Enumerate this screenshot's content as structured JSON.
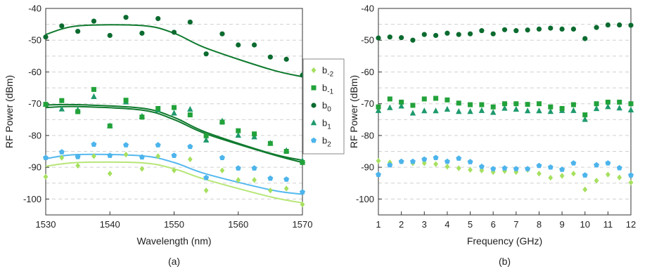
{
  "colors": {
    "b_-2": "#a6e05f",
    "b_-1": "#22a23a",
    "b_0": "#0b6b2f",
    "b_1": "#1e9a6c",
    "b_2": "#4db4ec",
    "fit_b_0": "#0f7a2e",
    "fit_b_1": "#0f7a2e",
    "fit_b_-1": "#0f7a2e",
    "fit_b_2": "#55b9ee",
    "fit_b_-2": "#b7e677",
    "grid": "#d0d0d0",
    "axis": "#333333"
  },
  "legend": {
    "entries": [
      {
        "key": "b_-2",
        "base": "b",
        "sub": "-2",
        "marker": "diamond"
      },
      {
        "key": "b_-1",
        "base": "b",
        "sub": "-1",
        "marker": "square"
      },
      {
        "key": "b_0",
        "base": "b",
        "sub": "0",
        "marker": "circle"
      },
      {
        "key": "b_1",
        "base": "b",
        "sub": "1",
        "marker": "triangle"
      },
      {
        "key": "b_2",
        "base": "b",
        "sub": "2",
        "marker": "pentagon"
      }
    ]
  },
  "chart_data": [
    {
      "panel_label": "(a)",
      "type": "scatter",
      "xlabel": "Wavelength (nm)",
      "ylabel": "RF Power (dBm)",
      "xlim": [
        1530,
        1570
      ],
      "ylim": [
        -105,
        -40
      ],
      "xticks": [
        "1530",
        "1540",
        "1550",
        "1560",
        "1570"
      ],
      "yticks": [
        "-40",
        "-50",
        "-60",
        "-70",
        "-80",
        "-90",
        "-100"
      ],
      "grid": "horizontal dashed",
      "legend_position": "right",
      "series": [
        {
          "key": "b_0",
          "marker": "circle",
          "x": [
            1530,
            1532.5,
            1535,
            1537.5,
            1540,
            1542.5,
            1545,
            1547.5,
            1550,
            1552.5,
            1555,
            1557.5,
            1560,
            1562.5,
            1565,
            1567.5,
            1570
          ],
          "y": [
            -49,
            -45.5,
            -47.2,
            -44,
            -48.5,
            -42.8,
            -47.8,
            -43.2,
            -47.5,
            -44.3,
            -54.3,
            -48,
            -51.5,
            -51.5,
            -55.3,
            -56,
            -61
          ],
          "fit": [
            -48.2,
            -45.5,
            -45.4,
            -47.8,
            -52.5,
            -59.2,
            -61.5
          ]
        },
        {
          "key": "b_-1",
          "marker": "square",
          "x": [
            1530,
            1532.5,
            1535,
            1537.5,
            1540,
            1542.5,
            1545,
            1547.5,
            1550,
            1552.5,
            1555,
            1557.5,
            1560,
            1562.5,
            1565,
            1567.5,
            1570
          ],
          "y": [
            -70.2,
            -69,
            -72.5,
            -65.5,
            -77,
            -68.9,
            -74.2,
            -71.5,
            -71.2,
            -73.5,
            -80.1,
            -75.8,
            -78.5,
            -79.5,
            -82.5,
            -85,
            -88.5
          ],
          "fit": [
            -70.4,
            -70.3,
            -71.4,
            -74.3,
            -79,
            -85.6,
            -87.8
          ]
        },
        {
          "key": "b_1",
          "marker": "triangle",
          "x": [
            1530,
            1532.5,
            1535,
            1537.5,
            1540,
            1542.5,
            1545,
            1547.5,
            1550,
            1552.5,
            1555,
            1557.5,
            1560,
            1562.5,
            1565,
            1567.5,
            1570
          ],
          "y": [
            -70.2,
            -71.7,
            -72,
            -67.8,
            -77,
            -69.5,
            -74,
            -72,
            -73,
            -71.8,
            -81.5,
            -75.5,
            -80,
            -80.5,
            -82.5,
            -84.8,
            -88
          ],
          "fit": [
            -71.2,
            -70.9,
            -72,
            -75,
            -79.5,
            -85.8,
            -88.5
          ]
        },
        {
          "key": "b_2",
          "marker": "pentagon",
          "x": [
            1530,
            1532.5,
            1535,
            1537.5,
            1540,
            1542.5,
            1545,
            1547.5,
            1550,
            1552.5,
            1555,
            1557.5,
            1560,
            1562.5,
            1565,
            1567.5,
            1570
          ],
          "y": [
            -87,
            -85.2,
            -86.7,
            -82.8,
            -86.3,
            -83,
            -86.8,
            -83,
            -86.3,
            -83.5,
            -93.3,
            -87,
            -90.3,
            -90.3,
            -93.5,
            -93.8,
            -97.8
          ],
          "fit": [
            -87.3,
            -86,
            -86.4,
            -88.5,
            -92.1,
            -97.1,
            -98.5
          ]
        },
        {
          "key": "b_-2",
          "marker": "diamond",
          "x": [
            1530,
            1532.5,
            1535,
            1537.5,
            1540,
            1542.5,
            1545,
            1547.5,
            1550,
            1552.5,
            1555,
            1557.5,
            1560,
            1562.5,
            1565,
            1567.5,
            1570
          ],
          "y": [
            -93,
            -87,
            -89.5,
            -86.5,
            -92,
            -86,
            -90.5,
            -86.5,
            -91,
            -87.5,
            -97.3,
            -91,
            -94,
            -94,
            -97.3,
            -96.7,
            -101.7
          ],
          "fit": [
            -89.7,
            -88.5,
            -88.6,
            -90.5,
            -93.9,
            -99.3,
            -101.2
          ]
        }
      ],
      "fit_x": [
        1530,
        1535,
        1545,
        1550,
        1555,
        1565,
        1570
      ]
    },
    {
      "panel_label": "(b)",
      "type": "scatter",
      "xlabel": "Frequency (GHz)",
      "ylabel": "RF Power (dBm)",
      "xlim": [
        1,
        12
      ],
      "ylim": [
        -105,
        -40
      ],
      "xticks": [
        "1",
        "2",
        "3",
        "4",
        "5",
        "6",
        "7",
        "8",
        "9",
        "10",
        "11",
        "12"
      ],
      "yticks": [
        "-40",
        "-50",
        "-60",
        "-70",
        "-80",
        "-90",
        "-100"
      ],
      "grid": "horizontal dashed",
      "series": [
        {
          "key": "b_0",
          "marker": "circle",
          "x": [
            1,
            1.5,
            2,
            2.5,
            3,
            3.5,
            4,
            4.5,
            5,
            5.5,
            6,
            6.5,
            7,
            7.5,
            8,
            8.5,
            9,
            9.5,
            10,
            10.5,
            11,
            11.5,
            12
          ],
          "y": [
            -49.3,
            -49,
            -49.2,
            -50,
            -48.2,
            -48.5,
            -47.8,
            -48.2,
            -48,
            -47,
            -48,
            -46.7,
            -47,
            -46.8,
            -46.5,
            -46.2,
            -46.5,
            -46.5,
            -49.5,
            -46,
            -45.2,
            -45.2,
            -45.3
          ]
        },
        {
          "key": "b_-1",
          "marker": "square",
          "x": [
            1,
            1.5,
            2,
            2.5,
            3,
            3.5,
            4,
            4.5,
            5,
            5.5,
            6,
            6.5,
            7,
            7.5,
            8,
            8.5,
            9,
            9.5,
            10,
            10.5,
            11,
            11.5,
            12
          ],
          "y": [
            -71,
            -68.5,
            -69.5,
            -70.5,
            -68.5,
            -68.3,
            -68.8,
            -69.8,
            -70.3,
            -70.3,
            -71,
            -70,
            -70,
            -70.2,
            -70,
            -71,
            -71.5,
            -70.3,
            -73.5,
            -70,
            -69.5,
            -69.5,
            -70
          ]
        },
        {
          "key": "b_1",
          "marker": "triangle",
          "x": [
            1,
            1.5,
            2,
            2.5,
            3,
            3.5,
            4,
            4.5,
            5,
            5.5,
            6,
            6.5,
            7,
            7.5,
            8,
            8.5,
            9,
            9.5,
            10,
            10.5,
            11,
            11.5,
            12
          ],
          "y": [
            -72.2,
            -71.3,
            -70.8,
            -73,
            -72.3,
            -72.3,
            -71.8,
            -72.5,
            -72.5,
            -72.2,
            -72.8,
            -71.5,
            -71.8,
            -72.3,
            -72.3,
            -72.5,
            -72.2,
            -72.2,
            -75,
            -71.6,
            -71,
            -71.4,
            -72
          ]
        },
        {
          "key": "b_2",
          "marker": "pentagon",
          "x": [
            1,
            1.5,
            2,
            2.5,
            3,
            3.5,
            4,
            4.5,
            5,
            5.5,
            6,
            6.5,
            7,
            7.5,
            8,
            8.5,
            9,
            9.5,
            10,
            10.5,
            11,
            11.5,
            12
          ],
          "y": [
            -92.3,
            -89.3,
            -88.2,
            -88.2,
            -87.5,
            -87,
            -88.2,
            -87.2,
            -88.3,
            -89.8,
            -90.5,
            -90.3,
            -90.5,
            -90.5,
            -89.5,
            -90,
            -90.7,
            -88.7,
            -92.5,
            -89.3,
            -88.7,
            -90.2,
            -92.5
          ]
        },
        {
          "key": "b_-2",
          "marker": "diamond",
          "x": [
            1,
            1.5,
            2,
            2.5,
            3,
            3.5,
            4,
            4.5,
            5,
            5.5,
            6,
            6.5,
            7,
            7.5,
            8,
            8.5,
            9,
            9.5,
            10,
            10.5,
            11,
            11.5,
            12
          ],
          "y": [
            -88,
            -88.5,
            -88.2,
            -88.7,
            -88.7,
            -89,
            -89.8,
            -90.3,
            -90.8,
            -91,
            -91.5,
            -91.2,
            -91.5,
            -90.8,
            -92,
            -93.3,
            -92.7,
            -92,
            -97,
            -94.2,
            -92.3,
            -93.2,
            -94.8
          ]
        }
      ]
    }
  ]
}
